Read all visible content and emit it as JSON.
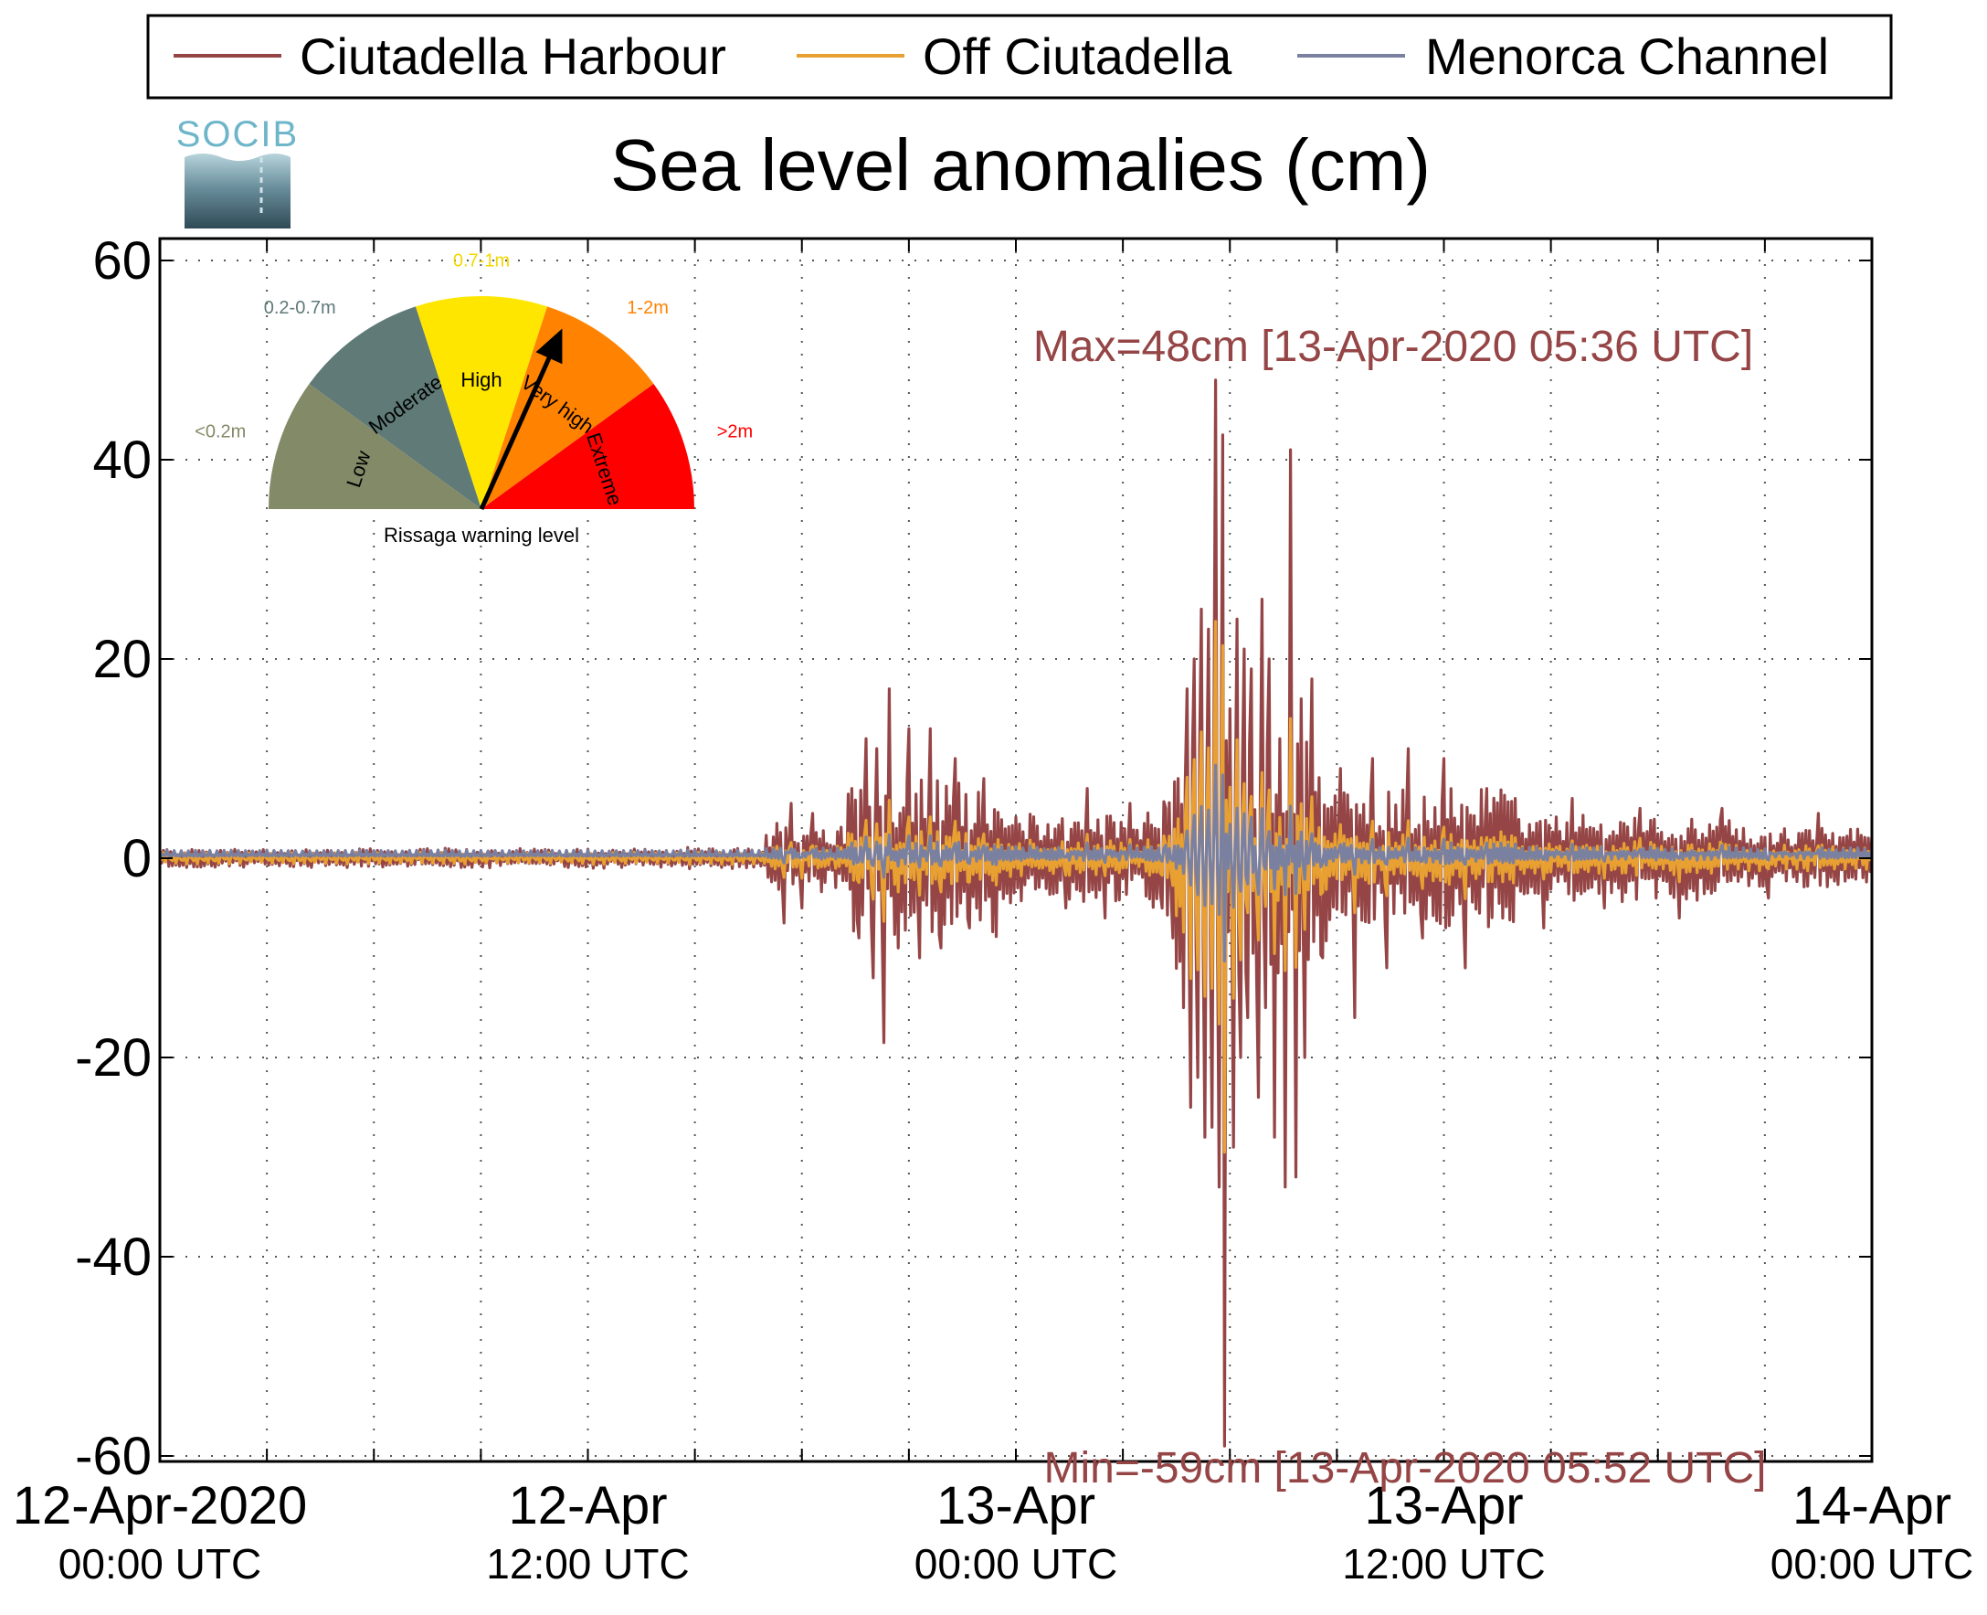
{
  "chart_data": {
    "type": "line",
    "title": "Sea level anomalies (cm)",
    "logo_text": "SOCIB",
    "xlabel": "",
    "ylabel": "",
    "x_range_hours": [
      0,
      48
    ],
    "ylim": [
      -60,
      60
    ],
    "yticks": [
      60,
      40,
      20,
      0,
      -20,
      -40,
      -60
    ],
    "y_tick_labels": [
      "60",
      "40",
      "20",
      "0",
      "-20",
      "-40",
      "-60"
    ],
    "x_ticks": [
      {
        "line1": "12-Apr-2020",
        "line2": "00:00 UTC",
        "hour": 0
      },
      {
        "line1": "12-Apr",
        "line2": "12:00 UTC",
        "hour": 12
      },
      {
        "line1": "13-Apr",
        "line2": "00:00 UTC",
        "hour": 24
      },
      {
        "line1": "13-Apr",
        "line2": "12:00 UTC",
        "hour": 36
      },
      {
        "line1": "14-Apr",
        "line2": "00:00 UTC",
        "hour": 48
      }
    ],
    "minor_x_ticks_hours": [
      3,
      6,
      9,
      15,
      18,
      21,
      27,
      30,
      33,
      39,
      42,
      45
    ],
    "grid": true,
    "legend_position": "top",
    "series": [
      {
        "name": "Ciutadella Harbour",
        "color": "#954545"
      },
      {
        "name": "Off Ciutadella",
        "color": "#e8a032"
      },
      {
        "name": "Menorca Channel",
        "color": "#7a80a0"
      }
    ],
    "annotations": {
      "max": {
        "text": "Max=48cm [13-Apr-2020 05:36 UTC]",
        "value": 48,
        "hour": 29.6
      },
      "min": {
        "text": "Min=-59cm [13-Apr-2020 05:52 UTC]",
        "value": -59,
        "hour": 29.87
      }
    },
    "harbour_spikes": [
      [
        17.3,
        3.5
      ],
      [
        17.5,
        -6.5
      ],
      [
        17.7,
        5.5
      ],
      [
        18.0,
        -5
      ],
      [
        18.3,
        4.5
      ],
      [
        19.4,
        7
      ],
      [
        19.6,
        -8
      ],
      [
        19.8,
        12
      ],
      [
        20.0,
        -12
      ],
      [
        20.1,
        11
      ],
      [
        20.3,
        -18.5
      ],
      [
        20.45,
        17
      ],
      [
        20.7,
        -9
      ],
      [
        21.0,
        13
      ],
      [
        21.3,
        -10
      ],
      [
        21.6,
        13
      ],
      [
        21.9,
        -9
      ],
      [
        22.3,
        10
      ],
      [
        22.7,
        -7
      ],
      [
        23.1,
        8
      ],
      [
        25.4,
        -5
      ],
      [
        26.0,
        7
      ],
      [
        26.5,
        -6
      ],
      [
        27.2,
        5.5
      ],
      [
        27.9,
        3
      ],
      [
        28.1,
        -5
      ],
      [
        28.2,
        5
      ],
      [
        28.4,
        -8
      ],
      [
        28.55,
        8
      ],
      [
        28.7,
        -15
      ],
      [
        28.8,
        17
      ],
      [
        28.9,
        -25
      ],
      [
        29.0,
        20
      ],
      [
        29.1,
        -22
      ],
      [
        29.2,
        25
      ],
      [
        29.3,
        -28
      ],
      [
        29.4,
        23
      ],
      [
        29.5,
        -27
      ],
      [
        29.6,
        48
      ],
      [
        29.7,
        -33
      ],
      [
        29.8,
        42.5
      ],
      [
        29.87,
        -59
      ],
      [
        30.0,
        15
      ],
      [
        30.1,
        -29
      ],
      [
        30.2,
        24
      ],
      [
        30.3,
        -20
      ],
      [
        30.4,
        21
      ],
      [
        30.5,
        -16
      ],
      [
        30.6,
        19
      ],
      [
        30.8,
        -24
      ],
      [
        30.9,
        26
      ],
      [
        31.0,
        -15
      ],
      [
        31.1,
        20
      ],
      [
        31.25,
        -28
      ],
      [
        31.4,
        12
      ],
      [
        31.55,
        -33
      ],
      [
        31.7,
        41
      ],
      [
        31.85,
        -32
      ],
      [
        32.0,
        16
      ],
      [
        32.1,
        -20
      ],
      [
        32.3,
        18
      ],
      [
        32.6,
        -10
      ],
      [
        33.1,
        9
      ],
      [
        33.5,
        -16
      ],
      [
        34.0,
        10
      ],
      [
        34.4,
        -11
      ],
      [
        35.0,
        11
      ],
      [
        35.4,
        -8
      ],
      [
        36.0,
        10
      ],
      [
        36.6,
        -11
      ],
      [
        37.2,
        7
      ],
      [
        38.0,
        6
      ],
      [
        38.8,
        -7
      ],
      [
        39.6,
        6
      ],
      [
        40.5,
        -5
      ],
      [
        41.5,
        5
      ],
      [
        42.6,
        -6
      ],
      [
        43.8,
        5
      ],
      [
        45.1,
        -4
      ],
      [
        46.5,
        4.5
      ]
    ],
    "gauge": {
      "caption": "Rissaga warning level",
      "segments": [
        {
          "label": "Low",
          "range": "<0.2m",
          "color": "#838a68",
          "label_color": "#838a68"
        },
        {
          "label": "Moderate",
          "range": "0.2-0.7m",
          "color": "#5f7a77",
          "label_color": "#5f7a77"
        },
        {
          "label": "High",
          "range": "0.7-1m",
          "color": "#ffe600",
          "label_color": "#f2d800"
        },
        {
          "label": "Very high",
          "range": "1-2m",
          "color": "#ff8200",
          "label_color": "#ff8200"
        },
        {
          "label": "Extreme",
          "range": ">2m",
          "color": "#ff0000",
          "label_color": "#ff0000"
        }
      ],
      "needle_segment": "Very high"
    }
  }
}
